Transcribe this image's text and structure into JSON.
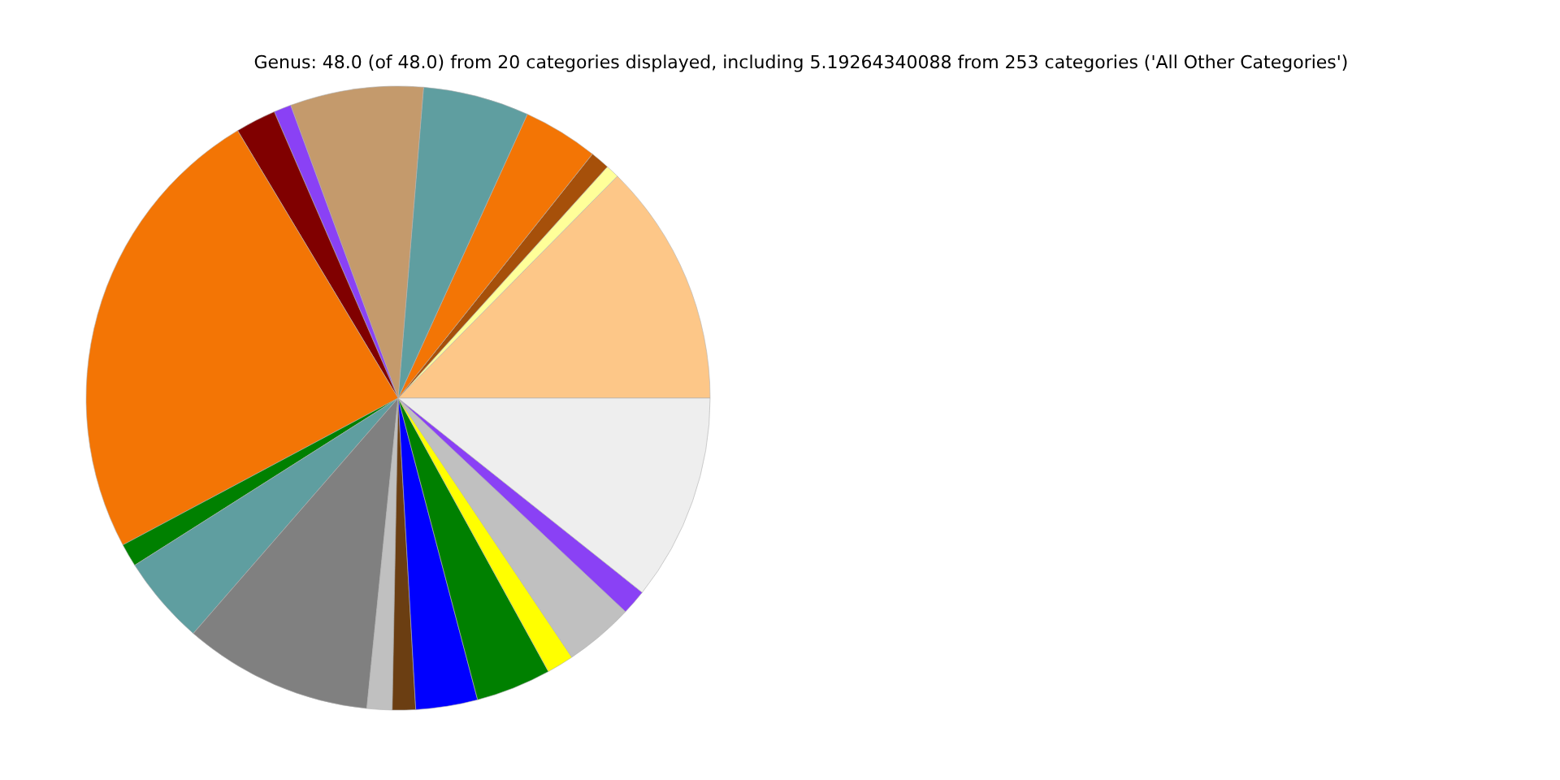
{
  "chart_data": {
    "type": "pie",
    "title": "Genus: 48.0 (of 48.0) from 20 categories displayed, including 5.19264340088 from 253 categories ('All Other Categories')",
    "categories": [
      null,
      null,
      null,
      null,
      null,
      null,
      null,
      null,
      null,
      null,
      null,
      null,
      null,
      null,
      null,
      null,
      null,
      null,
      null,
      null
    ],
    "values": [
      12.6,
      0.7,
      1.0,
      3.9,
      5.5,
      6.9,
      0.9,
      2.1,
      24.2,
      1.2,
      4.6,
      9.8,
      1.3,
      1.2,
      3.2,
      3.9,
      1.4,
      3.6,
      1.3,
      10.7
    ],
    "colors": [
      "#fdc788",
      "#ffff99",
      "#a6500a",
      "#f37505",
      "#5f9ea0",
      "#c49a6c",
      "#8a41f5",
      "#800000",
      "#f37505",
      "#008000",
      "#5f9ea0",
      "#808080",
      "#c0c0c0",
      "#6b3e12",
      "#0000ff",
      "#008000",
      "#ffff00",
      "#c0c0c0",
      "#8a41f5",
      "#eeeeee"
    ]
  }
}
